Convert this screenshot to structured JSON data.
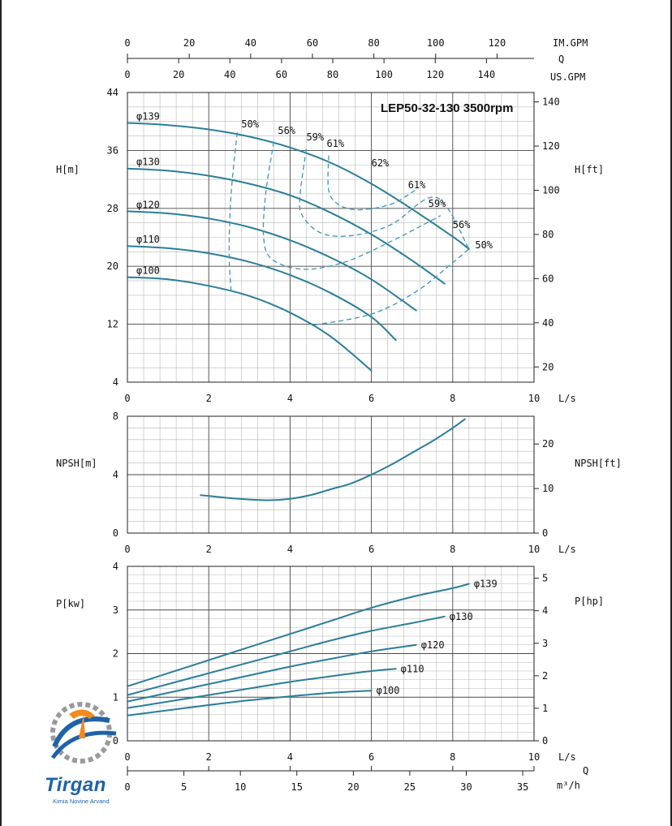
{
  "colors": {
    "curve": "#2a7e9a",
    "dash": "#3b95b5",
    "grid_major": "#4a4a4a",
    "grid_minor": "#b8b8b8",
    "logo_blue": "#1e63a8",
    "logo_orange": "#f0891e"
  },
  "logo": {
    "name": "Tirgan",
    "subtitle": "Kimia Novine Arvand"
  },
  "chart_data": [
    {
      "type": "line",
      "title": "LEP50-32-130 3500rpm",
      "xlabel": "L/s",
      "ylabel": "H[m]",
      "ylabel_right": "H[ft]",
      "xlim": [
        0,
        10
      ],
      "ylim": [
        4,
        44
      ],
      "x_ticks": [
        "0",
        "2",
        "4",
        "6",
        "8",
        "10"
      ],
      "y_ticks": [
        "4",
        "12",
        "20",
        "28",
        "36",
        "44"
      ],
      "y_ticks_right": [
        {
          "label": "20",
          "m": 6.1
        },
        {
          "label": "40",
          "m": 12.2
        },
        {
          "label": "60",
          "m": 18.3
        },
        {
          "label": "80",
          "m": 24.4
        },
        {
          "label": "100",
          "m": 30.5
        },
        {
          "label": "120",
          "m": 36.6
        },
        {
          "label": "140",
          "m": 42.7
        }
      ],
      "top_axes": [
        {
          "unit": "IM.GPM",
          "ticks": [
            {
              "label": "0",
              "lps": 0
            },
            {
              "label": "20",
              "lps": 1.52
            },
            {
              "label": "40",
              "lps": 3.03
            },
            {
              "label": "60",
              "lps": 4.55
            },
            {
              "label": "80",
              "lps": 6.06
            },
            {
              "label": "100",
              "lps": 7.58
            },
            {
              "label": "120",
              "lps": 9.09
            }
          ]
        },
        {
          "unit": "Q",
          "ticks": []
        },
        {
          "unit": "US.GPM",
          "ticks": [
            {
              "label": "0",
              "lps": 0
            },
            {
              "label": "20",
              "lps": 1.26
            },
            {
              "label": "40",
              "lps": 2.52
            },
            {
              "label": "60",
              "lps": 3.79
            },
            {
              "label": "80",
              "lps": 5.05
            },
            {
              "label": "100",
              "lps": 6.31
            },
            {
              "label": "120",
              "lps": 7.57
            },
            {
              "label": "140",
              "lps": 8.83
            }
          ]
        }
      ],
      "grid": true,
      "series": [
        {
          "name": "φ139",
          "x": [
            0,
            1,
            2,
            3,
            4,
            5,
            6,
            7,
            8,
            8.4
          ],
          "y": [
            39.8,
            39.5,
            38.9,
            37.9,
            36.4,
            34.3,
            31.4,
            27.9,
            24.1,
            22.4
          ]
        },
        {
          "name": "φ130",
          "x": [
            0,
            1,
            2,
            3,
            4,
            5,
            6,
            7,
            7.8
          ],
          "y": [
            33.5,
            33.2,
            32.5,
            31.4,
            29.8,
            27.4,
            24.4,
            20.8,
            17.6
          ]
        },
        {
          "name": "φ120",
          "x": [
            0,
            1,
            2,
            3,
            4,
            5,
            6,
            7.1
          ],
          "y": [
            27.6,
            27.3,
            26.6,
            25.4,
            23.6,
            21.2,
            18.2,
            13.9
          ]
        },
        {
          "name": "φ110",
          "x": [
            0,
            1,
            2,
            3,
            4,
            5,
            6,
            6.6
          ],
          "y": [
            22.8,
            22.5,
            21.8,
            20.6,
            18.8,
            16.3,
            13.0,
            9.8
          ]
        },
        {
          "name": "φ100",
          "x": [
            0,
            1,
            2,
            3,
            4,
            5,
            6
          ],
          "y": [
            18.5,
            18.2,
            17.3,
            15.9,
            13.6,
            10.3,
            5.6
          ]
        }
      ],
      "efficiency_lines": [
        {
          "label": "50%",
          "label_at": [
            2.8,
            39.2
          ],
          "x": [
            2.7,
            2.55,
            2.5,
            2.55
          ],
          "y": [
            38.5,
            30,
            22,
            16.5
          ]
        },
        {
          "label": "56%",
          "label_at": [
            3.7,
            38.3
          ],
          "x": [
            3.6,
            3.4,
            3.35,
            3.55,
            4.3,
            5.3,
            6.4,
            7.7
          ],
          "y": [
            37.2,
            30,
            24,
            21,
            19.6,
            20.5,
            23.2,
            27
          ]
        },
        {
          "label": "59%",
          "label_at": [
            4.4,
            37.4
          ],
          "x": [
            4.4,
            4.25,
            4.3,
            4.8,
            5.6,
            6.5,
            7.6,
            8.4
          ],
          "y": [
            36.2,
            30,
            27,
            24.5,
            24.3,
            25.8,
            29.5,
            22.4
          ]
        },
        {
          "label": "61%",
          "label_at": [
            4.9,
            36.5
          ],
          "x": [
            4.95,
            4.95,
            5.2,
            5.7,
            6.5,
            7.1
          ],
          "y": [
            35.3,
            30.5,
            28.5,
            27.8,
            28.6,
            30.6
          ]
        },
        {
          "label": "62%",
          "label_at": [
            6.0,
            33.8
          ],
          "x": [],
          "y": []
        },
        {
          "label": "61%",
          "label_at": [
            6.9,
            30.8
          ],
          "x": [],
          "y": []
        },
        {
          "label": "59%",
          "label_at": [
            7.4,
            28.2
          ],
          "x": [],
          "y": []
        },
        {
          "label": "56%",
          "label_at": [
            8.0,
            25.3
          ],
          "x": [],
          "y": []
        },
        {
          "label": "50%",
          "label_at": [
            8.55,
            22.5
          ],
          "x": [
            4.6,
            6.0,
            7.1,
            8.0,
            8.4
          ],
          "y": [
            11.9,
            13.4,
            16.5,
            20.5,
            22.4
          ]
        }
      ]
    },
    {
      "type": "line",
      "title": "",
      "xlabel": "L/s",
      "ylabel": "NPSH[m]",
      "ylabel_right": "NPSH[ft]",
      "xlim": [
        0,
        10
      ],
      "ylim": [
        0,
        8
      ],
      "x_ticks": [
        "0",
        "2",
        "4",
        "6",
        "8",
        "10"
      ],
      "y_ticks": [
        "0",
        "4",
        "8"
      ],
      "y_ticks_right": [
        {
          "label": "0",
          "m": 0
        },
        {
          "label": "10",
          "m": 3.05
        },
        {
          "label": "20",
          "m": 6.1
        }
      ],
      "grid": true,
      "series": [
        {
          "name": "",
          "x": [
            1.8,
            2.5,
            3.0,
            3.5,
            4.0,
            4.5,
            5.0,
            5.5,
            6.0,
            6.5,
            7.0,
            7.5,
            8.0,
            8.3
          ],
          "y": [
            2.6,
            2.4,
            2.3,
            2.25,
            2.35,
            2.6,
            3.0,
            3.4,
            4.0,
            4.7,
            5.5,
            6.3,
            7.2,
            7.8
          ]
        }
      ]
    },
    {
      "type": "line",
      "title": "",
      "xlabel": "L/s",
      "ylabel": "P[kw]",
      "ylabel_right": "P[hp]",
      "xlim": [
        0,
        10
      ],
      "ylim": [
        0,
        4
      ],
      "x_ticks": [
        "0",
        "2",
        "4",
        "6",
        "8",
        "10"
      ],
      "y_ticks": [
        "0",
        "1",
        "2",
        "3",
        "4"
      ],
      "y_ticks_right": [
        {
          "label": "0",
          "kw": 0
        },
        {
          "label": "1",
          "kw": 0.746
        },
        {
          "label": "2",
          "kw": 1.491
        },
        {
          "label": "3",
          "kw": 2.237
        },
        {
          "label": "4",
          "kw": 2.983
        },
        {
          "label": "5",
          "kw": 3.729
        }
      ],
      "bottom_axes": [
        {
          "unit": "L/s",
          "ticks": []
        },
        {
          "unit": "Q",
          "ticks": []
        },
        {
          "unit": "m³/h",
          "ticks": [
            {
              "label": "0",
              "lps": 0
            },
            {
              "label": "5",
              "lps": 1.389
            },
            {
              "label": "10",
              "lps": 2.778
            },
            {
              "label": "15",
              "lps": 4.167
            },
            {
              "label": "20",
              "lps": 5.556
            },
            {
              "label": "25",
              "lps": 6.944
            },
            {
              "label": "30",
              "lps": 8.333
            },
            {
              "label": "35",
              "lps": 9.722
            }
          ]
        }
      ],
      "grid": true,
      "series": [
        {
          "name": "φ139",
          "x": [
            0,
            1,
            2,
            3,
            4,
            5,
            6,
            7,
            8,
            8.4
          ],
          "y": [
            1.25,
            1.55,
            1.85,
            2.15,
            2.45,
            2.75,
            3.05,
            3.3,
            3.5,
            3.6
          ]
        },
        {
          "name": "φ130",
          "x": [
            0,
            1,
            2,
            3,
            4,
            5,
            6,
            7,
            7.8
          ],
          "y": [
            1.05,
            1.3,
            1.55,
            1.8,
            2.05,
            2.3,
            2.52,
            2.7,
            2.85
          ]
        },
        {
          "name": "φ120",
          "x": [
            0,
            1,
            2,
            3,
            4,
            5,
            6,
            7.1
          ],
          "y": [
            0.9,
            1.1,
            1.3,
            1.5,
            1.7,
            1.88,
            2.05,
            2.2
          ]
        },
        {
          "name": "φ110",
          "x": [
            0,
            1,
            2,
            3,
            4,
            5,
            6,
            6.6
          ],
          "y": [
            0.75,
            0.9,
            1.05,
            1.2,
            1.35,
            1.48,
            1.6,
            1.65
          ]
        },
        {
          "name": "φ100",
          "x": [
            0,
            1,
            2,
            3,
            4,
            5,
            6
          ],
          "y": [
            0.58,
            0.7,
            0.82,
            0.93,
            1.02,
            1.1,
            1.15
          ]
        }
      ]
    }
  ]
}
